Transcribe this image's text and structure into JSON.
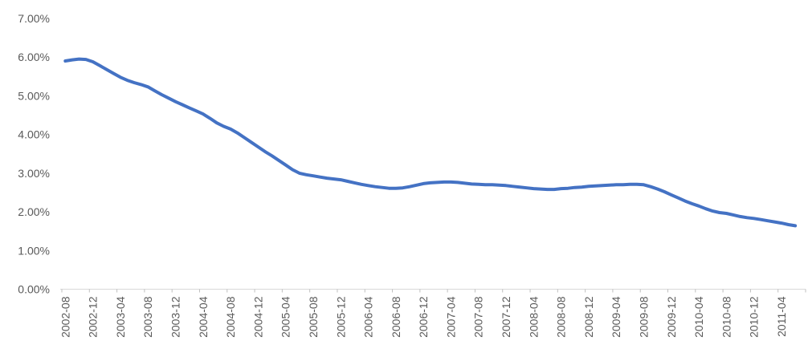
{
  "chart_data": {
    "type": "line",
    "title": "",
    "xlabel": "",
    "ylabel": "",
    "ylim": [
      0,
      7
    ],
    "grid": "off",
    "legend": "none",
    "y_tick_labels": [
      "0.00%",
      "1.00%",
      "2.00%",
      "3.00%",
      "4.00%",
      "5.00%",
      "6.00%",
      "7.00%"
    ],
    "x_label_every": 4,
    "x_tick_labels": [
      "2002-08",
      "2002-12",
      "2003-04",
      "2003-08",
      "2003-12",
      "2004-04",
      "2004-08",
      "2004-12",
      "2005-04",
      "2005-08",
      "2005-12",
      "2006-04",
      "2006-08",
      "2006-12",
      "2007-04",
      "2007-08",
      "2007-12",
      "2008-04",
      "2008-08",
      "2008-12",
      "2009-04",
      "2009-08",
      "2009-12",
      "2010-04",
      "2010-08",
      "2010-12",
      "2011-04"
    ],
    "months": [
      "2002-08",
      "2002-09",
      "2002-10",
      "2002-11",
      "2002-12",
      "2003-01",
      "2003-02",
      "2003-03",
      "2003-04",
      "2003-05",
      "2003-06",
      "2003-07",
      "2003-08",
      "2003-09",
      "2003-10",
      "2003-11",
      "2003-12",
      "2004-01",
      "2004-02",
      "2004-03",
      "2004-04",
      "2004-05",
      "2004-06",
      "2004-07",
      "2004-08",
      "2004-09",
      "2004-10",
      "2004-11",
      "2004-12",
      "2005-01",
      "2005-02",
      "2005-03",
      "2005-04",
      "2005-05",
      "2005-06",
      "2005-07",
      "2005-08",
      "2005-09",
      "2005-10",
      "2005-11",
      "2005-12",
      "2006-01",
      "2006-02",
      "2006-03",
      "2006-04",
      "2006-05",
      "2006-06",
      "2006-07",
      "2006-08",
      "2006-09",
      "2006-10",
      "2006-11",
      "2006-12",
      "2007-01",
      "2007-02",
      "2007-03",
      "2007-04",
      "2007-05",
      "2007-06",
      "2007-07",
      "2007-08",
      "2007-09",
      "2007-10",
      "2007-11",
      "2007-12",
      "2008-01",
      "2008-02",
      "2008-03",
      "2008-04",
      "2008-05",
      "2008-06",
      "2008-07",
      "2008-08",
      "2008-09",
      "2008-10",
      "2008-11",
      "2008-12",
      "2009-01",
      "2009-02",
      "2009-03",
      "2009-04",
      "2009-05",
      "2009-06",
      "2009-07",
      "2009-08",
      "2009-09",
      "2009-10",
      "2009-11",
      "2009-12",
      "2010-01",
      "2010-02",
      "2010-03",
      "2010-04",
      "2010-05",
      "2010-06",
      "2010-07",
      "2010-08",
      "2010-09",
      "2010-10",
      "2010-11",
      "2010-12",
      "2011-01",
      "2011-02",
      "2011-03",
      "2011-04",
      "2011-05",
      "2011-06"
    ],
    "values": [
      5.9,
      5.93,
      5.95,
      5.94,
      5.88,
      5.78,
      5.68,
      5.58,
      5.48,
      5.4,
      5.34,
      5.29,
      5.23,
      5.13,
      5.03,
      4.94,
      4.85,
      4.77,
      4.69,
      4.61,
      4.53,
      4.42,
      4.3,
      4.21,
      4.14,
      4.04,
      3.92,
      3.8,
      3.68,
      3.56,
      3.45,
      3.33,
      3.21,
      3.09,
      3.0,
      2.96,
      2.93,
      2.9,
      2.87,
      2.85,
      2.83,
      2.79,
      2.75,
      2.71,
      2.68,
      2.65,
      2.63,
      2.61,
      2.61,
      2.62,
      2.65,
      2.69,
      2.73,
      2.75,
      2.76,
      2.77,
      2.77,
      2.76,
      2.74,
      2.72,
      2.71,
      2.7,
      2.7,
      2.69,
      2.68,
      2.66,
      2.64,
      2.62,
      2.6,
      2.59,
      2.58,
      2.58,
      2.6,
      2.61,
      2.63,
      2.64,
      2.66,
      2.67,
      2.68,
      2.69,
      2.7,
      2.7,
      2.71,
      2.71,
      2.7,
      2.65,
      2.59,
      2.52,
      2.44,
      2.36,
      2.28,
      2.21,
      2.15,
      2.08,
      2.02,
      1.98,
      1.96,
      1.92,
      1.88,
      1.85,
      1.83,
      1.8,
      1.77,
      1.74,
      1.71,
      1.67,
      1.64
    ],
    "colors": {
      "line": "#4472C4",
      "axis_line": "#D9D9D9",
      "tick_mark": "#BFBFBF",
      "label_text": "#595959"
    }
  }
}
